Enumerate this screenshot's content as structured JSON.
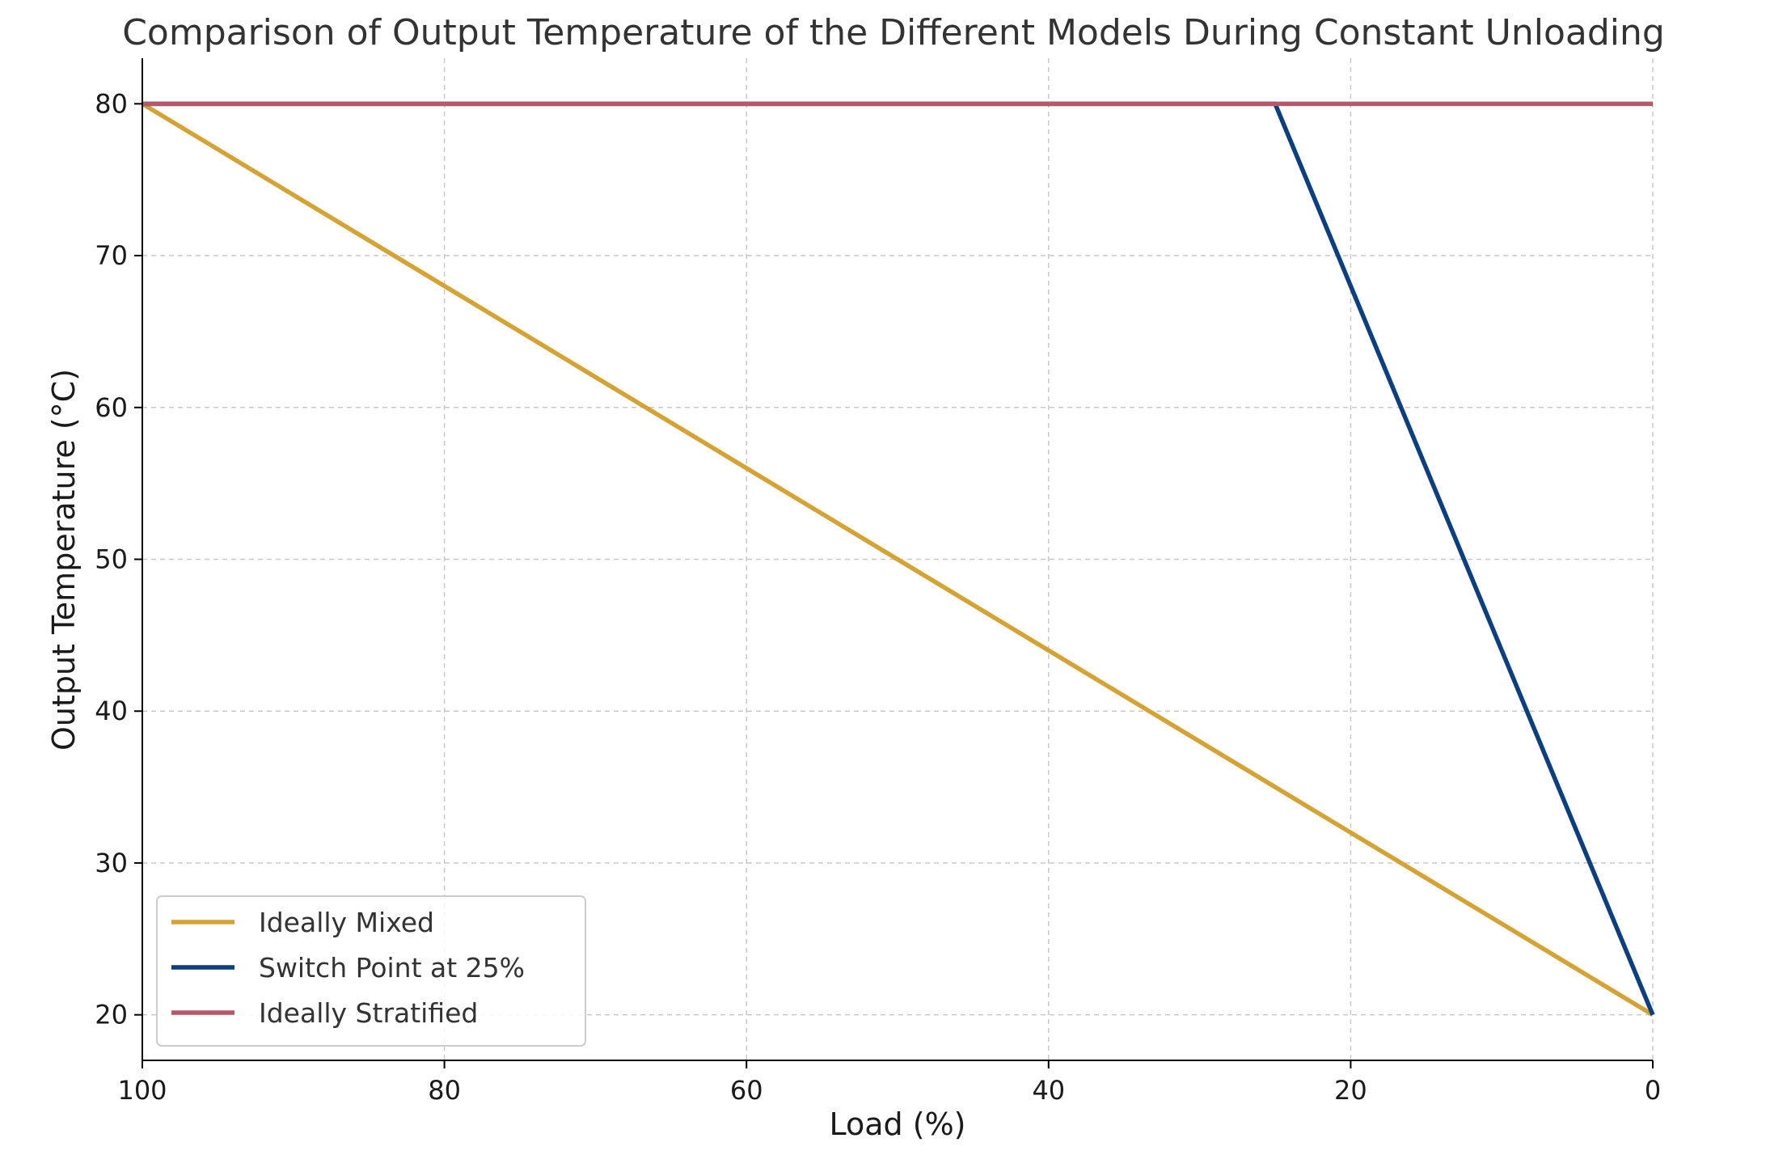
{
  "chart_data": {
    "type": "line",
    "title": "Comparison of Output Temperature of the Different Models During Constant Unloading",
    "xlabel": "Load (%)",
    "ylabel": "Output Temperature (°C)",
    "xlim": [
      100,
      0
    ],
    "ylim": [
      17,
      83
    ],
    "x_reversed": true,
    "grid": true,
    "legend_position": "lower-left",
    "x_ticks": [
      100,
      80,
      60,
      40,
      20,
      0
    ],
    "y_ticks": [
      20,
      30,
      40,
      50,
      60,
      70,
      80
    ],
    "series": [
      {
        "name": "Ideally Mixed",
        "color": "#D4A334",
        "points": [
          [
            100,
            80
          ],
          [
            0,
            20
          ]
        ]
      },
      {
        "name": "Switch Point at 25%",
        "color": "#0B3F7F",
        "points": [
          [
            100,
            80
          ],
          [
            25,
            80
          ],
          [
            0,
            20
          ]
        ]
      },
      {
        "name": "Ideally Stratified",
        "color": "#B4586A",
        "points": [
          [
            100,
            80
          ],
          [
            0,
            80
          ]
        ]
      }
    ]
  }
}
